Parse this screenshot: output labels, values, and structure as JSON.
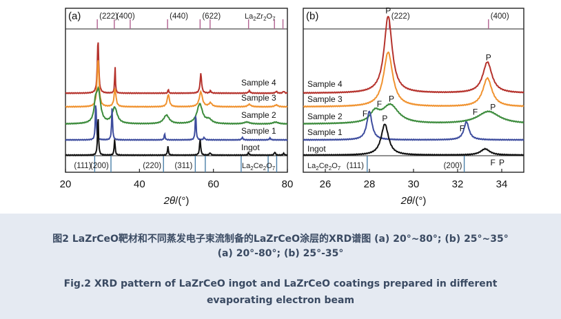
{
  "chart_data": [
    {
      "panel_label": "(a)",
      "type": "line",
      "xlabel_main": "2θ",
      "xlabel_unit": "/(°)",
      "xlim": [
        20,
        80
      ],
      "xticks": [
        20,
        40,
        60,
        80
      ],
      "reference_top": {
        "label": "La2Zr2O7",
        "label_main": "La",
        "label_sub1": "2",
        "label_mid": "Zr",
        "label_sub2": "2",
        "label_end": "O",
        "label_sub3": "7",
        "lines": [
          28.6,
          33.2,
          37.5,
          47.6,
          56.4,
          59.1,
          69.5,
          76.5,
          78.8
        ],
        "annotations": [
          {
            "x": 28.6,
            "text": "(222)"
          },
          {
            "x": 33.2,
            "text": "(400)"
          },
          {
            "x": 47.6,
            "text": "(440)"
          },
          {
            "x": 56.4,
            "text": "(622)"
          }
        ]
      },
      "reference_bottom": {
        "label": "La2Ce2O7",
        "label_main": "La",
        "label_sub1": "2",
        "label_mid": "Ce",
        "label_sub2": "2",
        "label_end": "O",
        "label_sub3": "7",
        "lines": [
          27.9,
          32.3,
          46.5,
          55.1,
          57.8,
          67.5,
          74.8,
          77.1
        ],
        "annotations": [
          {
            "x": 27.9,
            "text": "(111)"
          },
          {
            "x": 32.3,
            "text": "(200)"
          },
          {
            "x": 46.5,
            "text": "(220)"
          },
          {
            "x": 55.1,
            "text": "(311)"
          }
        ]
      },
      "series": [
        {
          "name": "Sample 4",
          "color": "#b5322c",
          "baseline": 0.84,
          "peaks": [
            [
              28.8,
              0.22,
              4.4
            ],
            [
              33.4,
              0.12,
              2.2
            ],
            [
              47.8,
              0.1,
              0.4
            ],
            [
              56.6,
              0.24,
              1.6
            ],
            [
              59.2,
              0.2,
              0.2
            ],
            [
              69.7,
              0.25,
              0.2
            ],
            [
              77,
              0.25,
              0.15
            ],
            [
              79,
              0.25,
              0.15
            ]
          ]
        },
        {
          "name": "Sample 3",
          "color": "#f0922f",
          "baseline": 1.07,
          "peaks": [
            [
              28.8,
              0.3,
              3.9
            ],
            [
              33.4,
              0.3,
              1.5
            ],
            [
              47.8,
              0.35,
              1.0
            ],
            [
              56.6,
              0.5,
              1.2
            ],
            [
              59.2,
              0.5,
              0.3
            ],
            [
              69.7,
              0.5,
              0.2
            ],
            [
              77,
              0.5,
              0.15
            ]
          ]
        },
        {
          "name": "Sample 2",
          "color": "#3c8b3c",
          "baseline": 1.06,
          "peaks": [
            [
              28.1,
              0.4,
              1.2
            ],
            [
              28.9,
              0.7,
              2.6
            ],
            [
              33.3,
              0.8,
              1.3
            ],
            [
              47.3,
              0.9,
              0.7
            ],
            [
              56.3,
              0.9,
              1.6
            ],
            [
              58.8,
              0.9,
              0.3
            ],
            [
              69,
              0.9,
              0.15
            ],
            [
              76.8,
              0.9,
              0.15
            ]
          ]
        },
        {
          "name": "Sample 1",
          "color": "#3d4c9e",
          "baseline": 1.06,
          "peaks": [
            [
              28.2,
              0.15,
              3.2
            ],
            [
              32.6,
              0.15,
              2.6
            ],
            [
              46.8,
              0.15,
              0.5
            ],
            [
              55.2,
              0.15,
              2.2
            ],
            [
              57.5,
              0.2,
              0.2
            ],
            [
              67.8,
              0.2,
              0.2
            ],
            [
              75.3,
              0.2,
              0.15
            ]
          ]
        },
        {
          "name": "Ingot",
          "color": "#111111",
          "baseline": 0.9,
          "peaks": [
            [
              28.8,
              0.15,
              3.3
            ],
            [
              33.3,
              0.15,
              1.3
            ],
            [
              47.7,
              0.15,
              0.7
            ],
            [
              56.4,
              0.18,
              1.3
            ],
            [
              59.1,
              0.2,
              0.2
            ],
            [
              69.5,
              0.2,
              0.2
            ],
            [
              76.6,
              0.2,
              0.25
            ],
            [
              79,
              0.2,
              0.15
            ]
          ]
        }
      ],
      "series_label_texts": [
        "Sample 4",
        "Sample 3",
        "Sample 2",
        "Sample 1",
        "Ingot"
      ]
    },
    {
      "panel_label": "(b)",
      "type": "line",
      "xlabel_main": "2θ",
      "xlabel_unit": "/(°)",
      "xlim": [
        25,
        35
      ],
      "xticks": [
        26,
        28,
        30,
        32,
        34
      ],
      "reference_top": {
        "lines": [
          28.9,
          33.4
        ],
        "annotations": [
          {
            "x": 28.9,
            "text": "(222)"
          },
          {
            "x": 33.4,
            "text": "(400)"
          }
        ]
      },
      "reference_bottom": {
        "label": "La2Ce2O7",
        "label_main": "La",
        "label_sub1": "2",
        "label_mid": "Ce",
        "label_sub2": "2",
        "label_end": "O",
        "label_sub3": "7",
        "lines": [
          27.9,
          32.3
        ],
        "annotations": [
          {
            "x": 27.9,
            "text": "(111)"
          },
          {
            "x": 32.3,
            "text": "(200)"
          }
        ]
      },
      "series": [
        {
          "name": "Sample 4",
          "color": "#b5322c",
          "baseline": 0.84,
          "peaks": [
            [
              28.85,
              0.22,
              6.2
            ],
            [
              33.35,
              0.25,
              2.5
            ]
          ]
        },
        {
          "name": "Sample 3",
          "color": "#f0922f",
          "baseline": 1.07,
          "peaks": [
            [
              28.85,
              0.25,
              4.4
            ],
            [
              33.35,
              0.25,
              2.3
            ]
          ]
        },
        {
          "name": "Sample 2",
          "color": "#3c8b3c",
          "baseline": 1.06,
          "peaks": [
            [
              28.25,
              0.25,
              0.8
            ],
            [
              28.95,
              0.45,
              1.5
            ],
            [
              33.4,
              0.6,
              1.0
            ]
          ]
        },
        {
          "name": "Sample 1",
          "color": "#3d4c9e",
          "baseline": 1.06,
          "peaks": [
            [
              28.0,
              0.14,
              2.3
            ],
            [
              32.4,
              0.14,
              1.45
            ]
          ]
        },
        {
          "name": "Ingot",
          "color": "#111111",
          "baseline": 0.9,
          "peaks": [
            [
              28.7,
              0.2,
              2.5
            ],
            [
              33.25,
              0.25,
              0.5
            ]
          ]
        }
      ],
      "series_label_texts": [
        "Sample 4",
        "Sample 3",
        "Sample 2",
        "Sample 1",
        "Ingot"
      ],
      "peak_markers": [
        {
          "text": "P",
          "x": 28.85,
          "series": 0
        },
        {
          "text": "P",
          "x": 33.4,
          "series": 0
        },
        {
          "text": "P",
          "x": 28.7,
          "series": 4
        },
        {
          "text": "F",
          "x": 27.8,
          "series": 2
        },
        {
          "text": "F",
          "x": 28.45,
          "series": 2
        },
        {
          "text": "P",
          "x": 29.0,
          "series": 2
        },
        {
          "text": "F",
          "x": 32.8,
          "series": 2
        },
        {
          "text": "P",
          "x": 33.6,
          "series": 2
        },
        {
          "text": "F",
          "x": 32.2,
          "series": 3
        },
        {
          "text": "F",
          "x": 33.6,
          "series": 5
        },
        {
          "text": "P",
          "x": 34.0,
          "series": 5
        }
      ]
    }
  ],
  "caption": {
    "cn_line1": "图2 LaZrCeO靶材和不同蒸发电子束流制备的LaZrCeO涂层的XRD谱图 (a) 20°~80°;  (b) 25°~35°",
    "cn_line2": "(a) 20°-80°;  (b) 25°-35°",
    "en_line1": "Fig.2 XRD pattern of LaZrCeO ingot and LaZrCeO coatings prepared in different",
    "en_line2": "evaporating electron beam"
  },
  "colors": {
    "refTop": "#b0608f",
    "refBottom": "#4a7fa8",
    "caption_bg": "#e5eaf2",
    "caption_text": "#3a4a62"
  }
}
